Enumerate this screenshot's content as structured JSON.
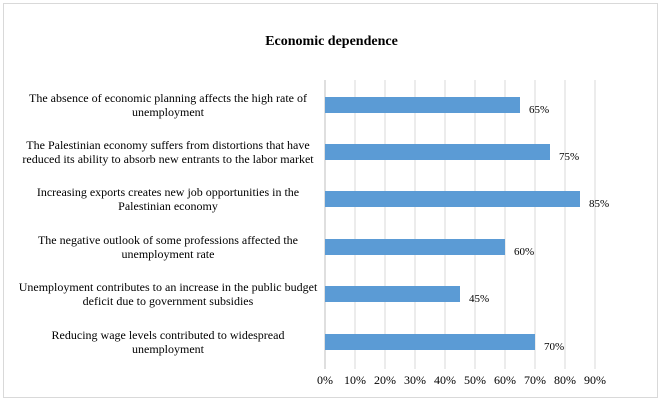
{
  "chart_data": {
    "type": "bar",
    "orientation": "horizontal",
    "title": "Economic dependence",
    "categories": [
      "The absence of economic planning affects the high rate of unemployment",
      "The Palestinian economy suffers from distortions that have reduced its ability to absorb new entrants to the labor market",
      "Increasing exports creates new job opportunities in the Palestinian economy",
      "The negative outlook of some professions affected the unemployment rate",
      "Unemployment contributes to an increase in the public budget deficit due to government subsidies",
      "Reducing wage levels contributed to widespread unemployment"
    ],
    "values": [
      65,
      75,
      85,
      60,
      45,
      70
    ],
    "data_labels": [
      "65%",
      "75%",
      "85%",
      "60%",
      "45%",
      "70%"
    ],
    "x_ticks": [
      "0%",
      "10%",
      "20%",
      "30%",
      "40%",
      "50%",
      "60%",
      "70%",
      "80%",
      "90%"
    ],
    "xlim": [
      0,
      90
    ],
    "grid": true,
    "legend": "none",
    "bar_color": "#5b9bd5"
  }
}
